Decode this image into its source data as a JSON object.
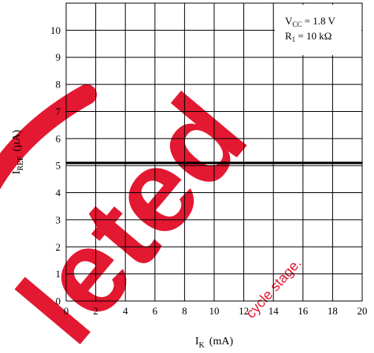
{
  "chart_data": {
    "type": "line",
    "x": [
      0,
      20
    ],
    "series": [
      {
        "values": [
          5.1,
          5.1
        ]
      }
    ],
    "xlabel_main": "I",
    "xlabel_sub": "K",
    "xlabel_unit": "(mA)",
    "ylabel_main": "I",
    "ylabel_sub": "REF",
    "ylabel_unit": "(µA)",
    "xlim": [
      0,
      20
    ],
    "ylim": [
      0,
      11
    ],
    "x_ticks": [
      "0",
      "2",
      "4",
      "6",
      "8",
      "10",
      "12",
      "14",
      "16",
      "18",
      "20"
    ],
    "y_ticks": [
      "0",
      "1",
      "2",
      "3",
      "4",
      "5",
      "6",
      "7",
      "8",
      "9",
      "10"
    ],
    "grid": true,
    "conditions_placement": "top-right",
    "conditions": [
      {
        "main": "V",
        "sub": "CC",
        "rest": " = 1.8 V"
      },
      {
        "main": "R",
        "sub": "1",
        "rest": " = 10 kΩ"
      }
    ],
    "line_color": "#000000"
  },
  "watermark": {
    "big_text": "leted",
    "small_text": "cycle stage.",
    "color": "#e0001b"
  }
}
